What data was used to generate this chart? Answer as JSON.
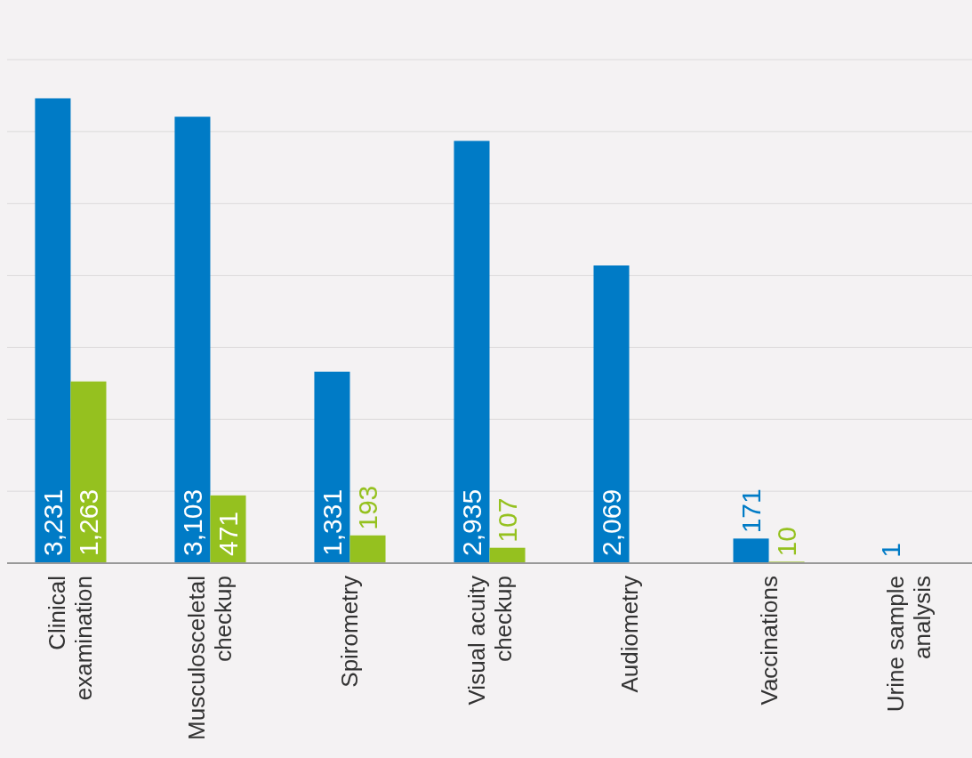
{
  "chart_data": {
    "type": "bar",
    "categories": [
      "Clinical examination",
      "Musculosceletal checkup",
      "Spirometry",
      "Visual acuity checkup",
      "Audiometry",
      "Vaccinations",
      "Urine sample analysis"
    ],
    "series": [
      {
        "color": "#007bc6",
        "values": [
          3231,
          3103,
          1331,
          2935,
          2069,
          171,
          1
        ],
        "value_labels": [
          "3,231",
          "3,103",
          "1,331",
          "2,935",
          "2,069",
          "171",
          "1"
        ]
      },
      {
        "color": "#95c11f",
        "values": [
          1263,
          471,
          193,
          107,
          null,
          10,
          null
        ],
        "value_labels": [
          "1,263",
          "471",
          "193",
          "107",
          null,
          "10",
          null
        ]
      }
    ],
    "ylim": [
      0,
      3500
    ],
    "yticks": [
      {
        "value": 0,
        "label": null
      },
      {
        "value": 500,
        "label": null
      },
      {
        "value": 1000,
        "label": null
      },
      {
        "value": 1500,
        "label": null
      },
      {
        "value": 2000,
        "label": null
      },
      {
        "value": 2500,
        "label": null
      },
      {
        "value": 3000,
        "label": null
      },
      {
        "value": 3500,
        "label": null
      }
    ],
    "grid": "y",
    "tick_labels": "x"
  }
}
